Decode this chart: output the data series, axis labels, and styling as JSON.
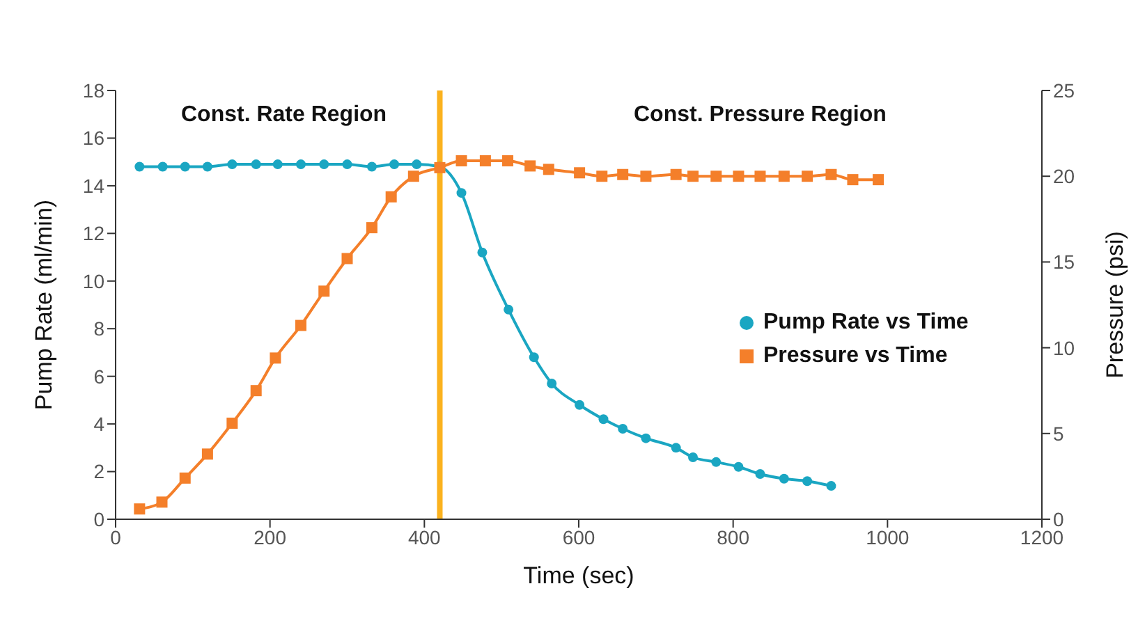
{
  "chart_data": {
    "type": "line",
    "xlabel": "Time (sec)",
    "ylabel": "Pump Rate (ml/min)",
    "y2label": "Pressure (psi)",
    "xlim": [
      0,
      1200
    ],
    "xticks": [
      0,
      200,
      400,
      600,
      800,
      1000,
      1200
    ],
    "ylim": [
      0,
      18
    ],
    "yticks": [
      0,
      2,
      4,
      6,
      8,
      10,
      12,
      14,
      16,
      18
    ],
    "y2lim": [
      0,
      25
    ],
    "y2ticks": [
      0,
      5,
      10,
      15,
      20,
      25
    ],
    "grid": false,
    "legend": "right",
    "line_style": "solid",
    "series": [
      {
        "name": "Pump Rate vs Time",
        "color": "#1aa6c2",
        "marker": "circle",
        "x": [
          31,
          61,
          90,
          119,
          151,
          182,
          210,
          240,
          270,
          300,
          332,
          361,
          390,
          420,
          448,
          475,
          509,
          542,
          565,
          601,
          632,
          657,
          687,
          726,
          748,
          778,
          807,
          835,
          866,
          896,
          927
        ],
        "values": [
          14.8,
          14.8,
          14.8,
          14.8,
          14.9,
          14.9,
          14.9,
          14.9,
          14.9,
          14.9,
          14.8,
          14.9,
          14.9,
          14.8,
          13.7,
          11.2,
          8.8,
          6.8,
          5.7,
          4.8,
          4.2,
          3.8,
          3.4,
          3.0,
          2.6,
          2.4,
          2.2,
          1.9,
          1.7,
          1.6,
          1.4
        ]
      },
      {
        "name": "Pressure vs Time",
        "color": "#f47f2a",
        "marker": "square",
        "axis": "y2",
        "x": [
          31,
          60,
          90,
          119,
          151,
          182,
          207,
          240,
          270,
          300,
          332,
          357,
          386,
          420,
          448,
          479,
          508,
          537,
          561,
          601,
          630,
          657,
          687,
          726,
          748,
          778,
          807,
          835,
          866,
          896,
          927,
          955,
          988
        ],
        "values": [
          0.6,
          1.0,
          2.4,
          3.8,
          5.6,
          7.5,
          9.4,
          11.3,
          13.3,
          15.2,
          17.0,
          18.8,
          20.0,
          20.5,
          20.9,
          20.9,
          20.9,
          20.6,
          20.4,
          20.2,
          20.0,
          20.1,
          20.0,
          20.1,
          20.0,
          20.0,
          20.0,
          20.0,
          20.0,
          20.0,
          20.1,
          19.8,
          19.8
        ]
      }
    ],
    "ref_lines": [
      {
        "axis": "x",
        "value": 420,
        "color": "#fbb21e",
        "line_style": "solid"
      }
    ],
    "annotations": [
      "Const. Rate Region",
      "Const. Pressure Region"
    ]
  }
}
